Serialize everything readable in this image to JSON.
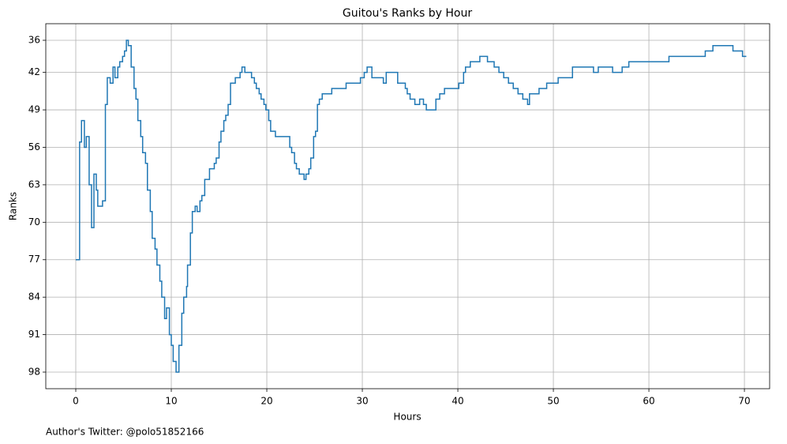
{
  "chart_data": {
    "type": "step",
    "title": "Guitou's Ranks by Hour",
    "x_label": "Hours",
    "y_label": "Ranks",
    "annotation": "Author's Twitter: @polo51852166",
    "color": "#1f77b4",
    "grid": true,
    "xlim": [
      -3.14,
      72.64
    ],
    "ylim": [
      101.1,
      32.9
    ],
    "xticks": [
      0,
      10,
      20,
      30,
      40,
      50,
      60,
      70
    ],
    "yticks": [
      36,
      42,
      49,
      56,
      63,
      70,
      77,
      84,
      91,
      98
    ],
    "x": [
      0,
      0.4,
      0.6,
      0.9,
      1.1,
      1.4,
      1.65,
      1.9,
      2.15,
      2.3,
      2.8,
      3.1,
      3.3,
      3.6,
      3.9,
      4.1,
      4.4,
      4.6,
      4.9,
      5.1,
      5.3,
      5.5,
      5.8,
      6.1,
      6.3,
      6.5,
      6.8,
      7.0,
      7.3,
      7.5,
      7.8,
      8.0,
      8.3,
      8.5,
      8.8,
      9.0,
      9.3,
      9.5,
      9.8,
      10.0,
      10.2,
      10.5,
      10.8,
      11.1,
      11.3,
      11.6,
      11.7,
      12.0,
      12.2,
      12.5,
      12.7,
      13.0,
      13.2,
      13.5,
      14.0,
      14.5,
      14.7,
      15.0,
      15.2,
      15.5,
      15.7,
      15.95,
      16.2,
      16.7,
      17.2,
      17.4,
      17.7,
      18.4,
      18.7,
      18.9,
      19.2,
      19.4,
      19.7,
      19.9,
      20.2,
      20.4,
      20.9,
      22.4,
      22.6,
      22.9,
      23.1,
      23.4,
      23.9,
      24.1,
      24.4,
      24.6,
      24.9,
      25.1,
      25.3,
      25.5,
      25.8,
      26.8,
      28.3,
      29.8,
      30.2,
      30.5,
      31.0,
      32.2,
      32.5,
      33.7,
      34.5,
      34.7,
      35.0,
      35.5,
      36.0,
      36.4,
      36.7,
      37.7,
      38.1,
      38.6,
      40.1,
      40.6,
      40.8,
      41.3,
      42.3,
      43.1,
      43.8,
      44.3,
      44.8,
      45.3,
      45.8,
      46.3,
      46.8,
      47.3,
      47.5,
      48.5,
      49.3,
      50.5,
      52.0,
      54.2,
      54.7,
      56.2,
      57.2,
      57.9,
      62.1,
      65.9,
      66.7,
      68.8,
      69.8,
      70.2
    ],
    "values": [
      77,
      55,
      51,
      56,
      54,
      63,
      71,
      61,
      64,
      67,
      66,
      48,
      43,
      44,
      41,
      43,
      41,
      40,
      39,
      38,
      36,
      37,
      41,
      45,
      47,
      51,
      54,
      57,
      59,
      64,
      68,
      73,
      75,
      78,
      81,
      84,
      88,
      86,
      91,
      93,
      96,
      98,
      93,
      87,
      84,
      82,
      78,
      72,
      68,
      67,
      68,
      66,
      65,
      62,
      60,
      59,
      58,
      55,
      53,
      51,
      50,
      48,
      44,
      43,
      42,
      41,
      42,
      43,
      44,
      45,
      46,
      47,
      48,
      49,
      51,
      53,
      54,
      56,
      57,
      59,
      60,
      61,
      62,
      61,
      60,
      58,
      54,
      53,
      48,
      47,
      46,
      45,
      44,
      43,
      42,
      41,
      43,
      44,
      42,
      44,
      45,
      46,
      47,
      48,
      47,
      48,
      49,
      47,
      46,
      45,
      44,
      42,
      41,
      40,
      39,
      40,
      41,
      42,
      43,
      44,
      45,
      46,
      47,
      48,
      46,
      45,
      44,
      43,
      41,
      42,
      41,
      42,
      41,
      40,
      39,
      38,
      37,
      38,
      39,
      39
    ]
  }
}
